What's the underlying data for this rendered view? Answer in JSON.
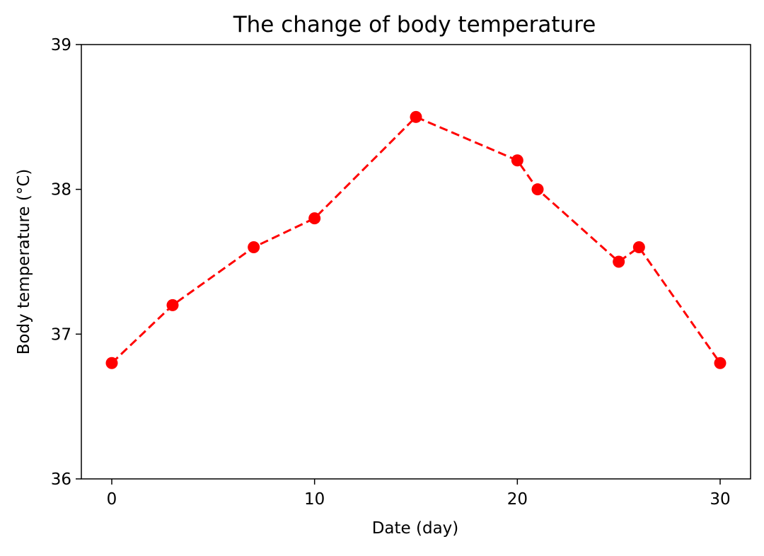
{
  "chart_data": {
    "type": "line",
    "title": "The change of body temperature",
    "xlabel": "Date (day)",
    "ylabel": "Body temperature (°C)",
    "xlim": [
      -1.5,
      31.5
    ],
    "ylim": [
      36,
      39
    ],
    "xticks": [
      0,
      10,
      20,
      30
    ],
    "yticks": [
      36,
      37,
      38,
      39
    ],
    "grid": false,
    "series": [
      {
        "color": "#ff0000",
        "line_style": "dashed",
        "marker": "circle",
        "x": [
          0,
          3,
          7,
          10,
          15,
          20,
          21,
          25,
          26,
          30
        ],
        "y": [
          36.8,
          37.2,
          37.6,
          37.8,
          38.5,
          38.2,
          38.0,
          37.5,
          37.6,
          36.8
        ]
      }
    ]
  }
}
